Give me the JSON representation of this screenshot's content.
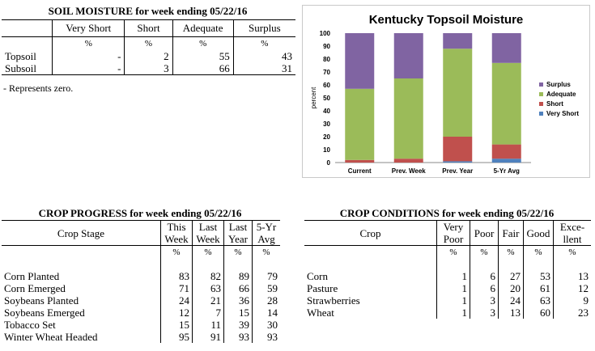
{
  "soil": {
    "title": "SOIL MOISTURE for week ending 05/22/16",
    "headers": [
      "Very Short",
      "Short",
      "Adequate",
      "Surplus"
    ],
    "pct": "%",
    "rows": [
      {
        "label": "Topsoil",
        "values": [
          "-",
          "2",
          "55",
          "43"
        ]
      },
      {
        "label": "Subsoil",
        "values": [
          "-",
          "3",
          "66",
          "31"
        ]
      }
    ],
    "note": "- Represents zero."
  },
  "chart_data": {
    "type": "bar",
    "stacked": true,
    "title": "Kentucky Topsoil Moisture",
    "ylabel": "percent",
    "categories": [
      "Current",
      "Prev. Week",
      "Prev. Year",
      "5-Yr Avg"
    ],
    "yticks": [
      "0",
      "10",
      "20",
      "30",
      "40",
      "50",
      "60",
      "70",
      "80",
      "90",
      "100"
    ],
    "ylim": [
      0,
      100
    ],
    "legend_position": "right",
    "series": [
      {
        "name": "Very Short",
        "color": "#4f81bd",
        "values": [
          0,
          0,
          1,
          3
        ]
      },
      {
        "name": "Short",
        "color": "#c0504d",
        "values": [
          2,
          3,
          19,
          11
        ]
      },
      {
        "name": "Adequate",
        "color": "#9bbb59",
        "values": [
          55,
          62,
          68,
          63
        ]
      },
      {
        "name": "Surplus",
        "color": "#8064a2",
        "values": [
          43,
          35,
          12,
          23
        ]
      }
    ],
    "legend_order": [
      "Surplus",
      "Adequate",
      "Short",
      "Very Short"
    ]
  },
  "progress": {
    "title": "CROP PROGRESS for week ending 05/22/16",
    "stage_header": "Crop Stage",
    "headers": [
      [
        "This",
        "Week"
      ],
      [
        "Last",
        "Week"
      ],
      [
        "Last",
        "Year"
      ],
      [
        "5-Yr",
        "Avg"
      ]
    ],
    "pct": "%",
    "rows": [
      {
        "label": "Corn Planted",
        "values": [
          "83",
          "82",
          "89",
          "79"
        ]
      },
      {
        "label": "Corn Emerged",
        "values": [
          "71",
          "63",
          "66",
          "59"
        ]
      },
      {
        "label": "Soybeans Planted",
        "values": [
          "24",
          "21",
          "36",
          "28"
        ]
      },
      {
        "label": "Soybeans Emerged",
        "values": [
          "12",
          "7",
          "15",
          "14"
        ]
      },
      {
        "label": "Tobacco Set",
        "values": [
          "15",
          "11",
          "39",
          "30"
        ]
      },
      {
        "label": "Winter Wheat Headed",
        "values": [
          "95",
          "91",
          "93",
          "93"
        ]
      }
    ]
  },
  "conditions": {
    "title": "CROP CONDITIONS for week ending 05/22/16",
    "crop_header": "Crop",
    "headers": [
      [
        "Very",
        "Poor"
      ],
      [
        "Poor"
      ],
      [
        "Fair"
      ],
      [
        "Good"
      ],
      [
        "Exce-",
        "llent"
      ]
    ],
    "pct": "%",
    "rows": [
      {
        "label": "Corn",
        "values": [
          "1",
          "6",
          "27",
          "53",
          "13"
        ]
      },
      {
        "label": "Pasture",
        "values": [
          "1",
          "6",
          "20",
          "61",
          "12"
        ]
      },
      {
        "label": "Strawberries",
        "values": [
          "1",
          "3",
          "24",
          "63",
          "9"
        ]
      },
      {
        "label": "Wheat",
        "values": [
          "1",
          "3",
          "13",
          "60",
          "23"
        ]
      }
    ]
  }
}
